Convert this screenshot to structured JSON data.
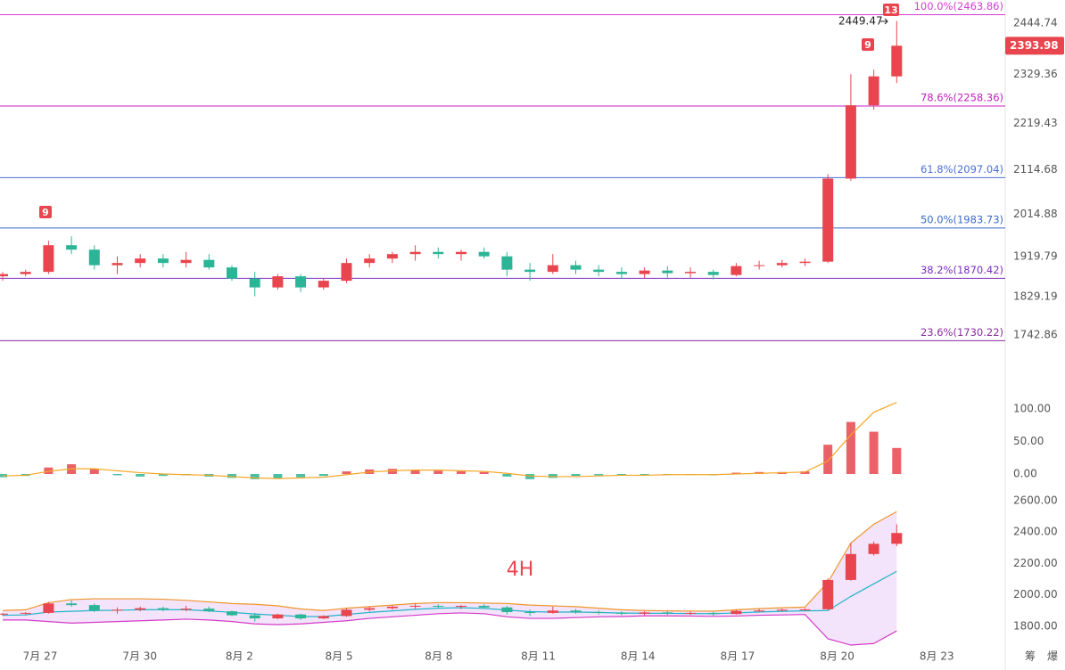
{
  "chart_data": {
    "type": "candlestick",
    "label": "4H",
    "categories": [
      "7月 27",
      "7月 30",
      "8月 2",
      "8月 5",
      "8月 8",
      "8月 11",
      "8月 14",
      "8月 17",
      "8月 20",
      "8月 23"
    ],
    "up_color": "#e8454e",
    "down_color": "#2bb596",
    "candles": {
      "open": [
        1875,
        1880,
        1885,
        1945,
        1935,
        1900,
        1905,
        1915,
        1905,
        1912,
        1895,
        1870,
        1850,
        1875,
        1850,
        1865,
        1905,
        1915,
        1925,
        1930,
        1925,
        1930,
        1920,
        1890,
        1885,
        1900,
        1890,
        1885,
        1880,
        1888,
        1882,
        1885,
        1878,
        1898,
        1900,
        1905,
        1908,
        2095,
        2260,
        2325
      ],
      "high": [
        1885,
        1890,
        1955,
        1965,
        1945,
        1920,
        1925,
        1925,
        1930,
        1925,
        1900,
        1885,
        1880,
        1880,
        1870,
        1915,
        1925,
        1930,
        1945,
        1940,
        1935,
        1940,
        1930,
        1905,
        1925,
        1910,
        1900,
        1895,
        1895,
        1898,
        1895,
        1890,
        1905,
        1910,
        1912,
        1915,
        2105,
        2330,
        2340,
        2449.47
      ],
      "low": [
        1865,
        1875,
        1880,
        1925,
        1890,
        1880,
        1895,
        1895,
        1895,
        1890,
        1865,
        1830,
        1845,
        1840,
        1845,
        1860,
        1895,
        1905,
        1910,
        1915,
        1910,
        1915,
        1875,
        1865,
        1880,
        1880,
        1875,
        1870,
        1870,
        1872,
        1872,
        1868,
        1875,
        1890,
        1895,
        1898,
        1905,
        2090,
        2250,
        2310
      ],
      "close": [
        1880,
        1885,
        1945,
        1935,
        1900,
        1905,
        1915,
        1905,
        1912,
        1895,
        1870,
        1850,
        1875,
        1850,
        1865,
        1905,
        1915,
        1925,
        1930,
        1925,
        1930,
        1920,
        1890,
        1885,
        1900,
        1890,
        1885,
        1880,
        1888,
        1882,
        1885,
        1878,
        1898,
        1900,
        1905,
        1908,
        2095,
        2260,
        2325,
        2393.98
      ]
    },
    "ylim": [
      1704.8,
      2496.9
    ],
    "yticks": [
      2444.74,
      2329.36,
      2219.43,
      2114.68,
      2014.88,
      1919.79,
      1829.19,
      1742.86
    ],
    "fib_levels": [
      {
        "label": "100.0%(2463.86)",
        "value": 2463.86,
        "color": "#d63ad6"
      },
      {
        "label": "78.6%(2258.36)",
        "value": 2258.36,
        "color": "#c020c0"
      },
      {
        "label": "61.8%(2097.04)",
        "value": 2097.04,
        "color": "#4a6fd6"
      },
      {
        "label": "50.0%(1983.73)",
        "value": 1983.73,
        "color": "#3a6ac8"
      },
      {
        "label": "38.2%(1870.42)",
        "value": 1870.42,
        "color": "#7a2fc0"
      },
      {
        "label": "23.6%(1730.22)",
        "value": 1730.22,
        "color": "#8a2ba0"
      }
    ],
    "markers": [
      "9",
      "13",
      "9"
    ],
    "indicator": {
      "ylim": [
        -31.5,
        180.8
      ],
      "yticks": [
        {
          "value": 100,
          "label": "100.00"
        },
        {
          "value": 50,
          "label": "50.00"
        },
        {
          "value": 0,
          "label": "0.00"
        }
      ],
      "histogram": [
        -5,
        -3,
        10,
        15,
        8,
        -2,
        -4,
        -3,
        -2,
        -4,
        -6,
        -8,
        -7,
        -5,
        -3,
        4,
        7,
        8,
        6,
        5,
        4,
        3,
        -4,
        -8,
        -6,
        -3,
        -2,
        -2,
        -1,
        -1,
        -1,
        -2,
        2,
        3,
        3,
        4,
        45,
        80,
        65,
        40
      ],
      "line": [
        -3,
        -2,
        4,
        8,
        8,
        5,
        2,
        0,
        -1,
        -2,
        -4,
        -6,
        -7,
        -6,
        -5,
        -1,
        3,
        5,
        6,
        6,
        5,
        4,
        1,
        -3,
        -4,
        -4,
        -3,
        -2,
        -2,
        -1,
        -1,
        -1,
        0,
        1,
        2,
        3,
        20,
        60,
        95,
        110
      ],
      "line_color": "#f5a623"
    },
    "bands": {
      "ylim": [
        1561,
        2628
      ],
      "yticks": [
        {
          "value": 2600,
          "label": "2600.00"
        },
        {
          "value": 2400,
          "label": "2400.00"
        },
        {
          "value": 2200,
          "label": "2200.00"
        },
        {
          "value": 2000,
          "label": "2000.00"
        },
        {
          "value": 1800,
          "label": "1800.00"
        }
      ],
      "upper": [
        1900,
        1905,
        1950,
        1970,
        1975,
        1975,
        1975,
        1972,
        1965,
        1955,
        1945,
        1940,
        1930,
        1910,
        1900,
        1915,
        1925,
        1935,
        1945,
        1950,
        1950,
        1948,
        1945,
        1935,
        1930,
        1925,
        1915,
        1905,
        1900,
        1898,
        1897,
        1896,
        1905,
        1912,
        1918,
        1922,
        2080,
        2330,
        2450,
        2530
      ],
      "middle": [
        1870,
        1872,
        1890,
        1895,
        1900,
        1902,
        1905,
        1906,
        1905,
        1898,
        1888,
        1878,
        1870,
        1862,
        1862,
        1875,
        1888,
        1898,
        1908,
        1915,
        1918,
        1914,
        1903,
        1893,
        1890,
        1890,
        1888,
        1884,
        1883,
        1882,
        1881,
        1880,
        1885,
        1891,
        1895,
        1898,
        1900,
        1990,
        2070,
        2150
      ],
      "lower": [
        1840,
        1840,
        1830,
        1820,
        1825,
        1830,
        1835,
        1840,
        1845,
        1840,
        1830,
        1815,
        1810,
        1815,
        1825,
        1835,
        1850,
        1860,
        1870,
        1880,
        1885,
        1880,
        1860,
        1850,
        1850,
        1855,
        1860,
        1862,
        1866,
        1866,
        1865,
        1863,
        1865,
        1870,
        1872,
        1875,
        1720,
        1680,
        1690,
        1770
      ],
      "upper_color": "#f0962c",
      "middle_color": "#22b5c8",
      "lower_color": "#d43bc8",
      "fill": "#f3e3fb"
    },
    "footer": [
      "筹",
      "爆"
    ]
  }
}
